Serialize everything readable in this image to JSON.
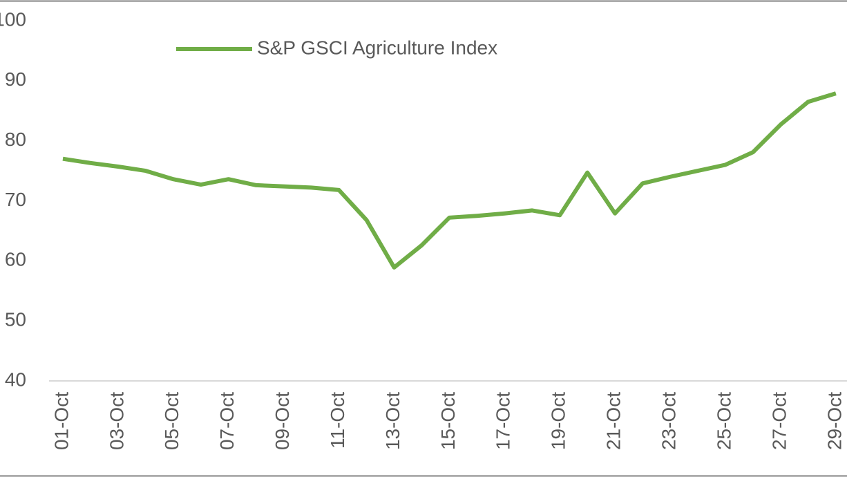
{
  "chart_data": {
    "type": "line",
    "categories": [
      "01-Oct",
      null,
      "03-Oct",
      null,
      "05-Oct",
      null,
      "07-Oct",
      null,
      "09-Oct",
      null,
      "11-Oct",
      null,
      "13-Oct",
      null,
      "15-Oct",
      null,
      "17-Oct",
      null,
      "19-Oct",
      null,
      "21-Oct",
      null,
      "23-Oct",
      null,
      "25-Oct",
      null,
      "27-Oct",
      null,
      "29-Oct"
    ],
    "series": [
      {
        "name": "S&P GSCI Agriculture Index",
        "color": "#70ad47",
        "values": [
          77.0,
          76.3,
          75.7,
          75.0,
          73.6,
          72.7,
          73.6,
          72.6,
          72.4,
          72.2,
          71.8,
          66.8,
          58.9,
          62.6,
          67.2,
          67.5,
          67.9,
          68.4,
          67.6,
          74.7,
          67.9,
          72.9,
          74.0,
          75.0,
          76.0,
          78.1,
          82.7,
          86.5,
          87.9
        ]
      }
    ],
    "ylim": [
      40,
      100
    ],
    "yticks": [
      40,
      50,
      60,
      70,
      80,
      90,
      100
    ],
    "grid": false,
    "legend": "top"
  }
}
